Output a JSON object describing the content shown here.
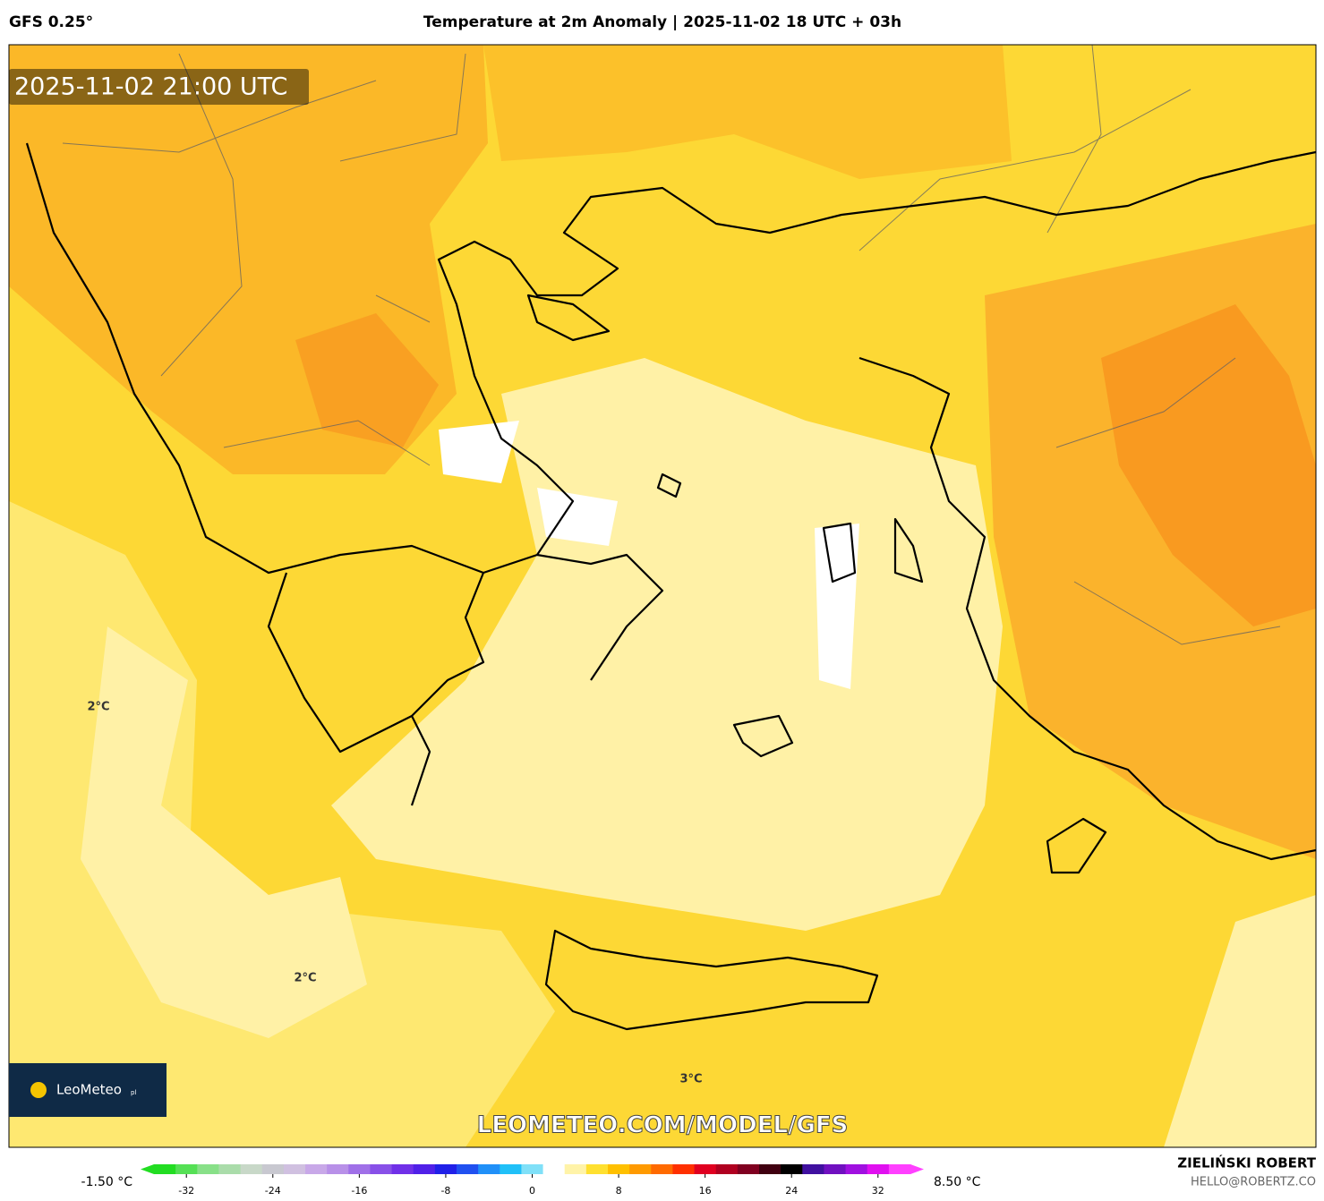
{
  "header": {
    "model": "GFS 0.25°",
    "title": "Temperature at 2m Anomaly | 2025-11-02 18 UTC + 03h"
  },
  "map": {
    "valid_time": "2025-11-02 21:00 UTC",
    "labels": [
      "2°C",
      "2°C",
      "3°C"
    ],
    "watermark": "LEOMETEO.COM/MODEL/GFS",
    "logo": "LeoMeteo",
    "logo_suffix": "pl"
  },
  "colorbar": {
    "min_label": "-1.50 °C",
    "max_label": "8.50 °C",
    "lim": [
      -35,
      35
    ],
    "ticks": [
      -32,
      -24,
      -16,
      -8,
      0,
      8,
      16,
      24,
      32
    ],
    "colors": [
      "#22dd22",
      "#55e055",
      "#88e088",
      "#aadcaa",
      "#c8d8c8",
      "#c8c8d0",
      "#d0c0e0",
      "#c8a8e8",
      "#b890e8",
      "#a070e8",
      "#8850e8",
      "#7030e8",
      "#5020e8",
      "#2020e8",
      "#2050f0",
      "#2090f8",
      "#20c0f8",
      "#80e0f8",
      "#ffffff",
      "#fff3a8",
      "#ffe030",
      "#ffc000",
      "#ff9a00",
      "#ff6a00",
      "#ff3000",
      "#e00020",
      "#b00020",
      "#800020",
      "#400010",
      "#000000",
      "#4010a0",
      "#7010c0",
      "#a010e0",
      "#e010f0",
      "#ff40ff"
    ]
  },
  "footer": {
    "author": "ZIELIŃSKI ROBERT",
    "email": "HELLO@ROBERTZ.CO"
  }
}
